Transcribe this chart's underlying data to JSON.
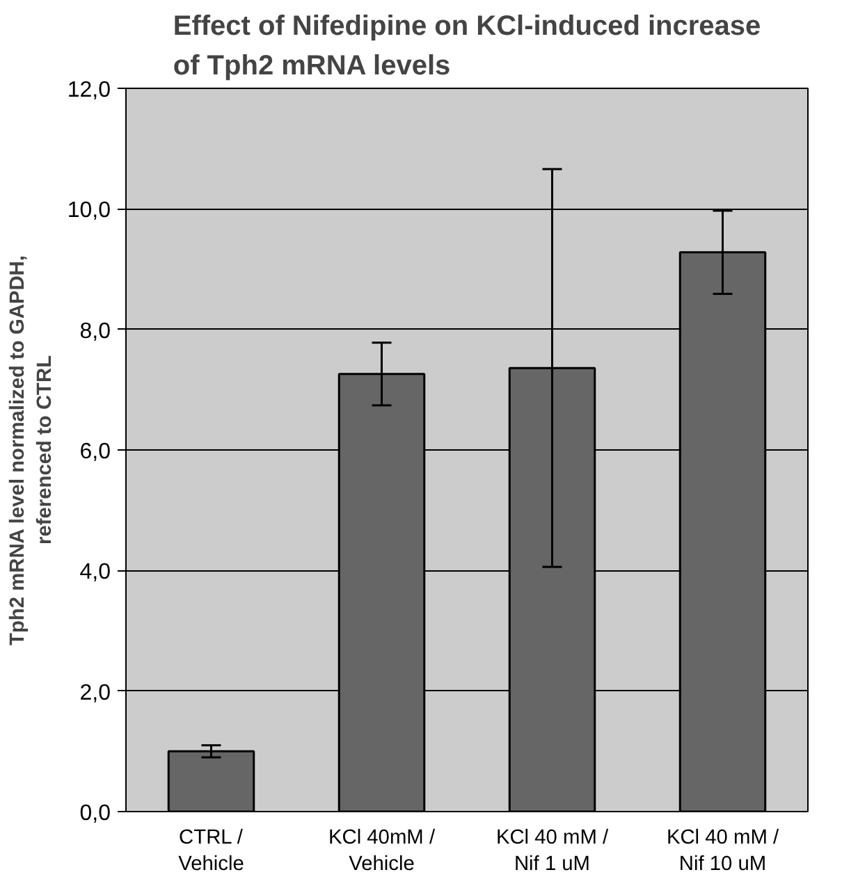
{
  "chart_data": {
    "type": "bar",
    "title": "Effect of Nifedipine on KCl-induced increase of Tph2 mRNA levels",
    "ylabel": "Tph2 mRNA level normalized to GAPDH, referenced to CTRL",
    "categories": [
      "CTRL / Vehicle",
      "KCl 40mM / Vehicle",
      "KCl 40 mM / Nif 1 uM",
      "KCl 40 mM / Nif 10 uM"
    ],
    "values": [
      1.0,
      7.26,
      7.36,
      9.28
    ],
    "errors": [
      0.1,
      0.52,
      3.3,
      0.69
    ],
    "color": "#666666",
    "ylim": [
      0,
      12
    ],
    "yticks": [
      {
        "value": 0,
        "label": "0,0"
      },
      {
        "value": 2,
        "label": "2,0"
      },
      {
        "value": 4,
        "label": "4,0"
      },
      {
        "value": 6,
        "label": "6,0"
      },
      {
        "value": 8,
        "label": "8,0"
      },
      {
        "value": 10,
        "label": "10,0"
      },
      {
        "value": 12,
        "label": "12,0"
      }
    ],
    "grid": "y"
  }
}
